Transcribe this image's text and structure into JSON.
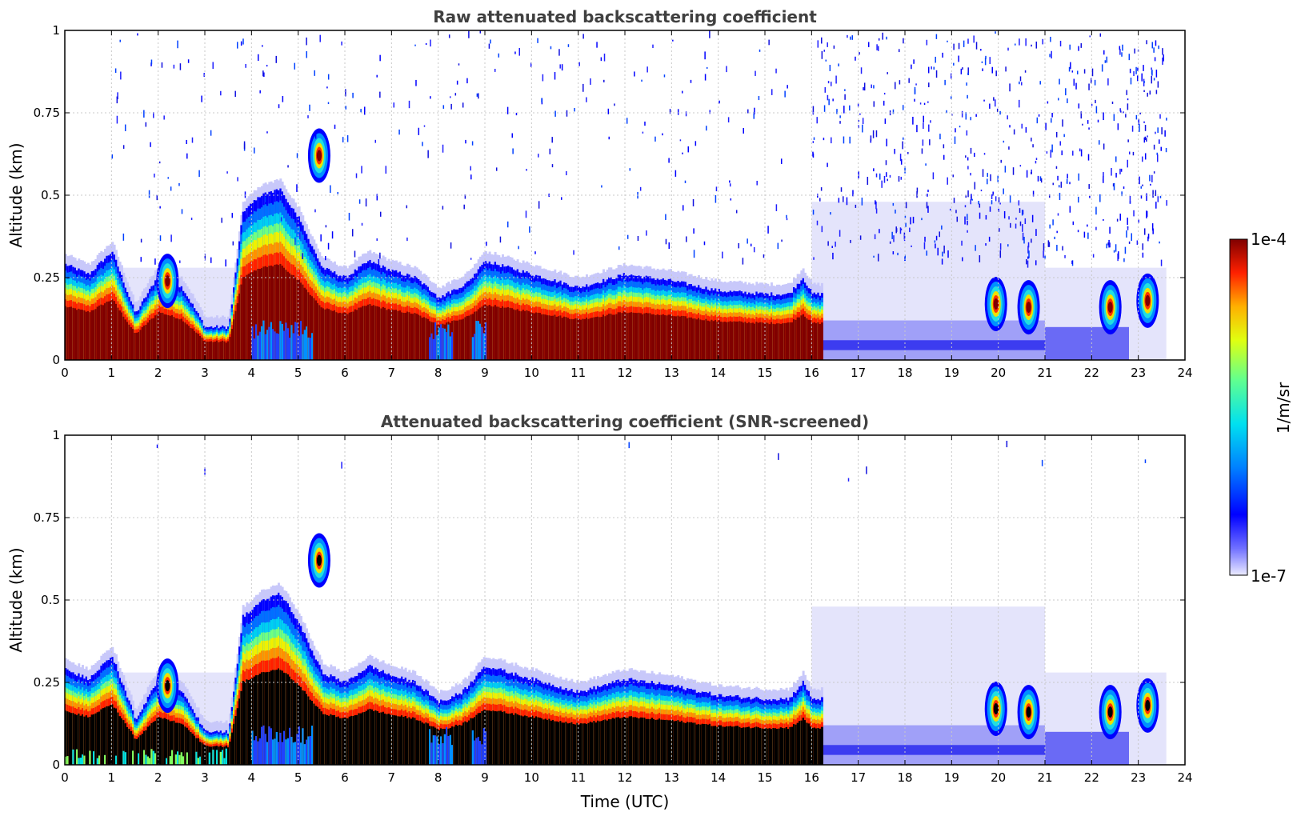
{
  "chart_data": [
    {
      "type": "heatmap",
      "title": "Raw attenuated backscattering coefficient",
      "xlabel": "",
      "ylabel": "Altitude (km)",
      "xlim": [
        0,
        24
      ],
      "ylim": [
        0,
        1
      ],
      "xticks": [
        "0",
        "1",
        "2",
        "3",
        "4",
        "5",
        "6",
        "7",
        "8",
        "9",
        "10",
        "11",
        "12",
        "13",
        "14",
        "15",
        "16",
        "17",
        "18",
        "19",
        "20",
        "21",
        "22",
        "23",
        "24"
      ],
      "yticks": [
        "0",
        "0.25",
        "0.5",
        "0.75",
        "1"
      ],
      "grid": true,
      "screened": false,
      "layer_top_km": [
        [
          0,
          0.29
        ],
        [
          0.5,
          0.26
        ],
        [
          1,
          0.33
        ],
        [
          1.5,
          0.14
        ],
        [
          2,
          0.26
        ],
        [
          2.5,
          0.22
        ],
        [
          3,
          0.1
        ],
        [
          3.5,
          0.1
        ],
        [
          3.8,
          0.45
        ],
        [
          4.2,
          0.5
        ],
        [
          4.6,
          0.52
        ],
        [
          5,
          0.43
        ],
        [
          5.5,
          0.28
        ],
        [
          6,
          0.25
        ],
        [
          6.5,
          0.3
        ],
        [
          7,
          0.27
        ],
        [
          7.5,
          0.25
        ],
        [
          8,
          0.19
        ],
        [
          8.5,
          0.22
        ],
        [
          9,
          0.3
        ],
        [
          10,
          0.26
        ],
        [
          11,
          0.22
        ],
        [
          12,
          0.26
        ],
        [
          13,
          0.24
        ],
        [
          14,
          0.21
        ],
        [
          15,
          0.2
        ],
        [
          15.5,
          0.2
        ],
        [
          15.8,
          0.25
        ],
        [
          16,
          0.2
        ]
      ],
      "clouds": [
        {
          "time": 5.45,
          "alt_km": 0.62
        },
        {
          "time": 2.2,
          "alt_km": 0.24
        },
        {
          "time": 19.95,
          "alt_km": 0.17
        },
        {
          "time": 20.65,
          "alt_km": 0.16
        },
        {
          "time": 22.4,
          "alt_km": 0.16
        },
        {
          "time": 23.2,
          "alt_km": 0.18
        }
      ],
      "colorbar": {
        "min": "1e-7",
        "max": "1e-4",
        "label": "1/m/sr",
        "scale": "log",
        "colormap": "jet"
      }
    },
    {
      "type": "heatmap",
      "title": "Attenuated backscattering coefficient (SNR-screened)",
      "xlabel": "Time (UTC)",
      "ylabel": "Altitude (km)",
      "xlim": [
        0,
        24
      ],
      "ylim": [
        0,
        1
      ],
      "xticks": [
        "0",
        "1",
        "2",
        "3",
        "4",
        "5",
        "6",
        "7",
        "8",
        "9",
        "10",
        "11",
        "12",
        "13",
        "14",
        "15",
        "16",
        "17",
        "18",
        "19",
        "20",
        "21",
        "22",
        "23",
        "24"
      ],
      "yticks": [
        "0",
        "0.25",
        "0.5",
        "0.75",
        "1"
      ],
      "grid": true,
      "screened": true,
      "layer_top_km": [
        [
          0,
          0.29
        ],
        [
          0.5,
          0.26
        ],
        [
          1,
          0.33
        ],
        [
          1.5,
          0.14
        ],
        [
          2,
          0.26
        ],
        [
          2.5,
          0.22
        ],
        [
          3,
          0.1
        ],
        [
          3.5,
          0.1
        ],
        [
          3.8,
          0.45
        ],
        [
          4.2,
          0.5
        ],
        [
          4.6,
          0.52
        ],
        [
          5,
          0.43
        ],
        [
          5.5,
          0.28
        ],
        [
          6,
          0.25
        ],
        [
          6.5,
          0.3
        ],
        [
          7,
          0.27
        ],
        [
          7.5,
          0.25
        ],
        [
          8,
          0.19
        ],
        [
          8.5,
          0.22
        ],
        [
          9,
          0.3
        ],
        [
          10,
          0.26
        ],
        [
          11,
          0.22
        ],
        [
          12,
          0.26
        ],
        [
          13,
          0.24
        ],
        [
          14,
          0.21
        ],
        [
          15,
          0.2
        ],
        [
          15.5,
          0.2
        ],
        [
          15.8,
          0.25
        ],
        [
          16,
          0.2
        ]
      ],
      "clouds": [
        {
          "time": 5.45,
          "alt_km": 0.62
        },
        {
          "time": 2.2,
          "alt_km": 0.24
        },
        {
          "time": 19.95,
          "alt_km": 0.17
        },
        {
          "time": 20.65,
          "alt_km": 0.16
        },
        {
          "time": 22.4,
          "alt_km": 0.16
        },
        {
          "time": 23.2,
          "alt_km": 0.18
        }
      ],
      "colorbar": {
        "min": "1e-7",
        "max": "1e-4",
        "label": "1/m/sr",
        "scale": "log",
        "colormap": "jet"
      }
    }
  ],
  "colors": {
    "saturated_raw": "#800000",
    "saturated_screened": "#000000",
    "faint": "#e4e4fb",
    "grid": "#c8c8c8"
  }
}
